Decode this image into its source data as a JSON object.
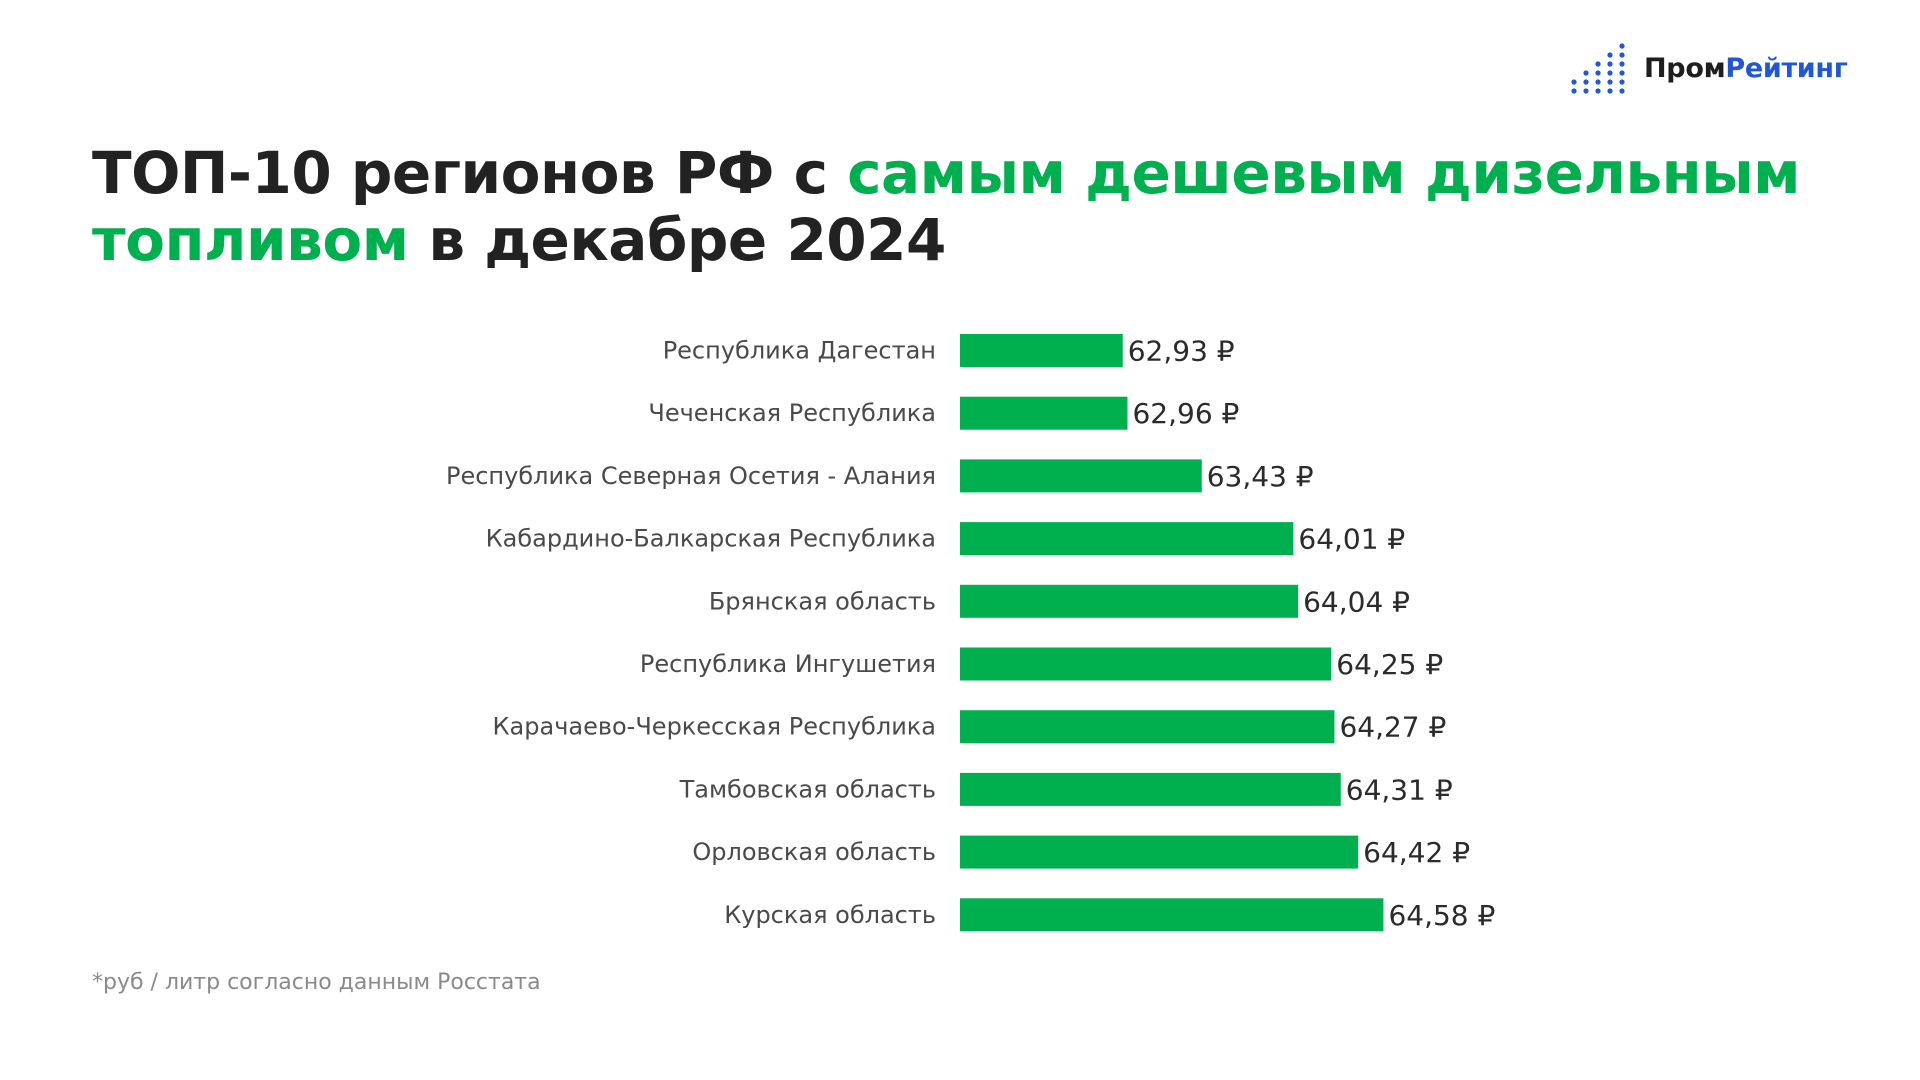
{
  "logo": {
    "part1": "Пром",
    "part2": "Рейтинг",
    "icon": "dot-bars-icon",
    "icon_color": "#1f57d6"
  },
  "title": {
    "part1": "ТОП-10 регионов РФ с ",
    "part2": "самым дешевым дизельным топливом",
    "part3": " в декабре 2024"
  },
  "colors": {
    "accent": "#00b04f",
    "bar": "#00b04f",
    "text": "#222222"
  },
  "footnote": "*руб / литр согласно данным Росстата",
  "chart_data": {
    "type": "bar",
    "orientation": "horizontal",
    "title": "",
    "xlabel": "",
    "ylabel": "",
    "value_suffix": " ₽",
    "xlim": [
      61.9,
      66.0
    ],
    "grid": false,
    "legend": "none",
    "categories": [
      "Республика Дагестан",
      "Чеченская Республика",
      "Республика Северная Осетия - Алания",
      "Кабардино-Балкарская Республика",
      "Брянская область",
      "Республика Ингушетия",
      "Карачаево-Черкесская Республика",
      "Тамбовская область",
      "Орловская область",
      "Курская область"
    ],
    "values": [
      62.93,
      62.96,
      63.43,
      64.01,
      64.04,
      64.25,
      64.27,
      64.31,
      64.42,
      64.58
    ],
    "value_labels": [
      "62,93 ₽",
      "62,96 ₽",
      "63,43 ₽",
      "64,01 ₽",
      "64,04 ₽",
      "64,25 ₽",
      "64,27 ₽",
      "64,31 ₽",
      "64,42 ₽",
      "64,58 ₽"
    ]
  }
}
